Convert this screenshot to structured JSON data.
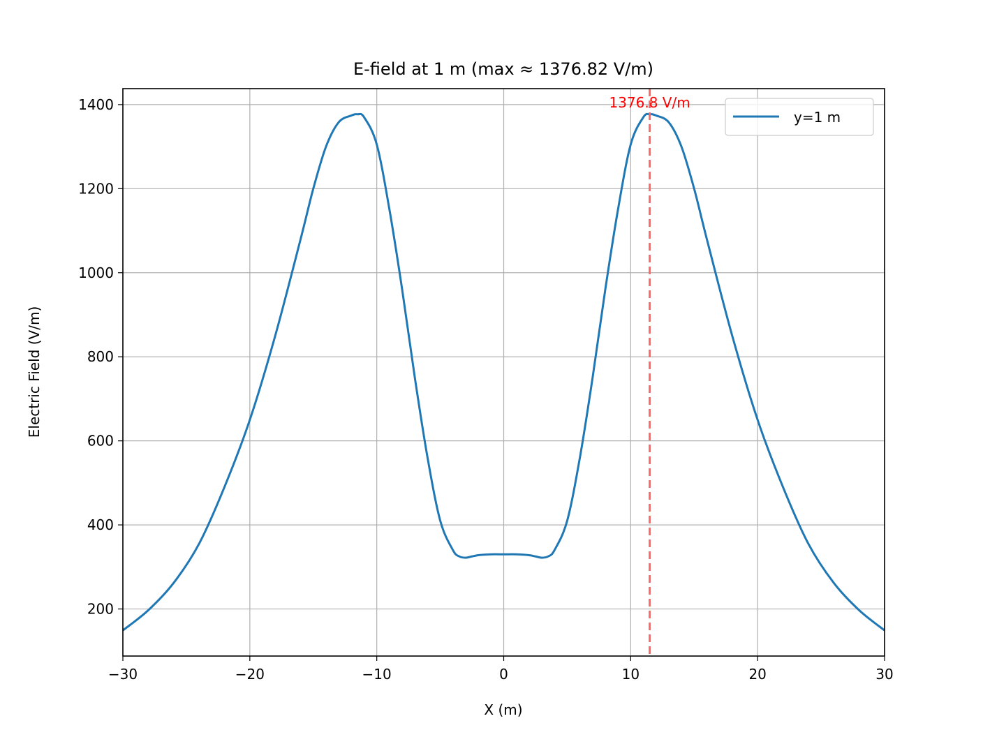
{
  "chart_data": {
    "type": "line",
    "title": "E-field at 1 m (max ≈ 1376.82 V/m)",
    "xlabel": "X (m)",
    "ylabel": "Electric Field (V/m)",
    "xlim": [
      -30,
      30
    ],
    "ylim": [
      88,
      1438
    ],
    "xticks": [
      -30,
      -20,
      -10,
      0,
      10,
      20,
      30
    ],
    "xtick_labels": [
      "−30",
      "−20",
      "−10",
      "0",
      "10",
      "20",
      "30"
    ],
    "yticks": [
      200,
      400,
      600,
      800,
      1000,
      1200,
      1400
    ],
    "ytick_labels": [
      "200",
      "400",
      "600",
      "800",
      "1000",
      "1200",
      "1400"
    ],
    "grid": true,
    "legend_position": "top-right",
    "series": [
      {
        "name": "y=1 m",
        "color": "#1f77b4",
        "x": [
          -30,
          -28,
          -26,
          -24,
          -22,
          -20,
          -18,
          -16,
          -15,
          -14,
          -13,
          -12,
          -11.5,
          -11,
          -10,
          -9,
          -8,
          -7,
          -6,
          -5,
          -4,
          -3.5,
          -3,
          -2.5,
          -2,
          -1,
          0,
          1,
          2,
          2.5,
          3,
          3.5,
          4,
          5,
          6,
          7,
          8,
          9,
          10,
          11,
          11.5,
          12,
          13,
          14,
          15,
          16,
          18,
          20,
          22,
          24,
          26,
          28,
          30
        ],
        "y": [
          149,
          197,
          262,
          355,
          490,
          650,
          850,
          1080,
          1200,
          1300,
          1358,
          1374,
          1377,
          1370,
          1305,
          1150,
          960,
          750,
          560,
          410,
          340,
          325,
          322,
          325,
          328,
          330,
          330,
          330,
          328,
          325,
          322,
          325,
          340,
          410,
          560,
          750,
          960,
          1150,
          1305,
          1370,
          1377,
          1374,
          1358,
          1300,
          1200,
          1080,
          850,
          650,
          490,
          355,
          262,
          197,
          149
        ]
      }
    ],
    "annotations": [
      {
        "text": "1376.8 V/m",
        "x": 11.5,
        "y": 1376.8,
        "color": "#ff0000",
        "line": "vertical-dashed",
        "line_color": "#ff6666"
      }
    ]
  }
}
